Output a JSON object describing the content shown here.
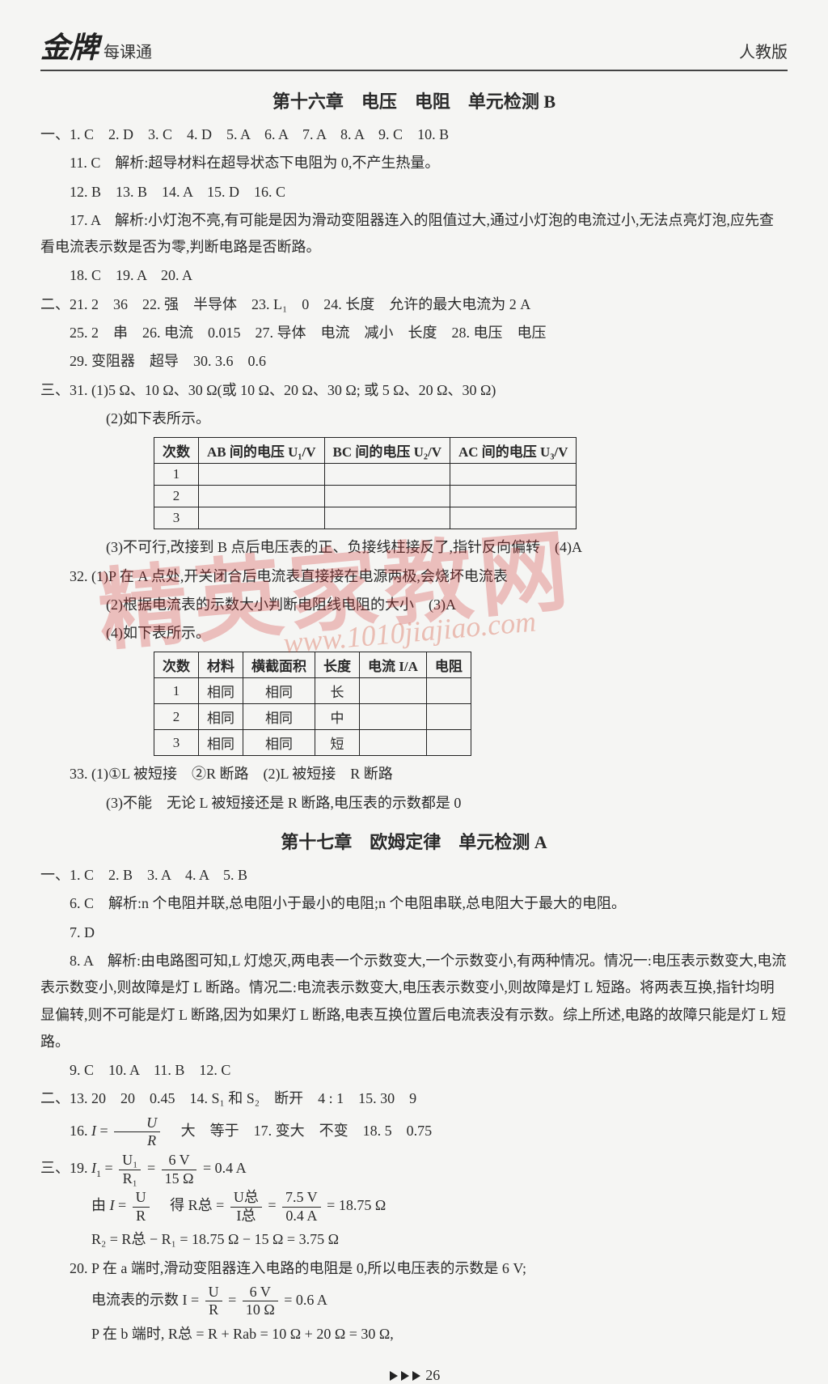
{
  "header": {
    "brand_logo": "金牌",
    "brand_sub": "每课通",
    "version": "人教版"
  },
  "chapter16": {
    "title": "第十六章　电压　电阻　单元检测 B",
    "section1": {
      "label": "一、",
      "answers": "1. C　2. D　3. C　4. D　5. A　6. A　7. A　8. A　9. C　10. B",
      "q11": "11. C　解析:超导材料在超导状态下电阻为 0,不产生热量。",
      "q12to16": "12. B　13. B　14. A　15. D　16. C",
      "q17": "17. A　解析:小灯泡不亮,有可能是因为滑动变阻器连入的阻值过大,通过小灯泡的电流过小,无法点亮灯泡,应先查看电流表示数是否为零,判断电路是否断路。",
      "q18to20": "18. C　19. A　20. A"
    },
    "section2": {
      "label": "二、",
      "q21to24": "21. 2　36　22. 强　半导体　23. L₁　0　24. 长度　允许的最大电流为 2 A",
      "q25to28": "25. 2　串　26. 电流　0.015　27. 导体　电流　减小　长度　28. 电压　电压",
      "q29to30": "29. 变阻器　超导　30. 3.6　0.6"
    },
    "section3": {
      "label": "三、",
      "q31_1": "31. (1)5 Ω、10 Ω、30 Ω(或 10 Ω、20 Ω、30 Ω; 或 5 Ω、20 Ω、30 Ω)",
      "q31_2": "(2)如下表所示。",
      "table1": {
        "headers": [
          "次数",
          "AB 间的电压 U₁/V",
          "BC 间的电压 U₂/V",
          "AC 间的电压 U₃/V"
        ],
        "rows": [
          [
            "1",
            "",
            "",
            ""
          ],
          [
            "2",
            "",
            "",
            ""
          ],
          [
            "3",
            "",
            "",
            ""
          ]
        ]
      },
      "q31_3": "(3)不可行,改接到 B 点后电压表的正、负接线柱接反了,指针反向偏转　(4)A",
      "q32_1": "32. (1)P 在 A 点处,开关闭合后电流表直接接在电源两极,会烧坏电流表",
      "q32_2": "(2)根据电流表的示数大小判断电阻线电阻的大小　(3)A",
      "q32_4": "(4)如下表所示。",
      "table2": {
        "headers": [
          "次数",
          "材料",
          "横截面积",
          "长度",
          "电流 I/A",
          "电阻"
        ],
        "rows": [
          [
            "1",
            "相同",
            "相同",
            "长",
            "",
            ""
          ],
          [
            "2",
            "相同",
            "相同",
            "中",
            "",
            ""
          ],
          [
            "3",
            "相同",
            "相同",
            "短",
            "",
            ""
          ]
        ]
      },
      "q33_1": "33. (1)①L 被短接　②R 断路　(2)L 被短接　R 断路",
      "q33_3": "(3)不能　无论 L 被短接还是 R 断路,电压表的示数都是 0"
    }
  },
  "chapter17": {
    "title": "第十七章　欧姆定律　单元检测 A",
    "section1": {
      "label": "一、",
      "q1to5": "1. C　2. B　3. A　4. A　5. B",
      "q6": "6. C　解析:n 个电阻并联,总电阻小于最小的电阻;n 个电阻串联,总电阻大于最大的电阻。",
      "q7": "7. D",
      "q8": "8. A　解析:由电路图可知,L 灯熄灭,两电表一个示数变大,一个示数变小,有两种情况。情况一:电压表示数变大,电流表示数变小,则故障是灯 L 断路。情况二:电流表示数变大,电压表示数变小,则故障是灯 L 短路。将两表互换,指针均明显偏转,则不可能是灯 L 断路,因为如果灯 L 断路,电表互换位置后电流表没有示数。综上所述,电路的故障只能是灯 L 短路。",
      "q9to12": "9. C　10. A　11. B　12. C"
    },
    "section2": {
      "label": "二、",
      "q13to15": "13. 20　20　0.45　14. S₁ 和 S₂　断开　4 : 1　15. 30　9",
      "q16_pre": "16. ",
      "q16_eq": "I = U/R",
      "q16_post": "　大　等于　17. 变大　不变　18. 5　0.75"
    },
    "section3": {
      "label": "三、",
      "q19_intro": "19. ",
      "q19_eq1_lhs": "I₁ = ",
      "q19_eq1_num": "U₁",
      "q19_eq1_den": "R₁",
      "q19_eq1_eq": " = ",
      "q19_eq1_num2": "6 V",
      "q19_eq1_den2": "15 Ω",
      "q19_eq1_res": " = 0.4 A",
      "q19_l2_pre": "由 ",
      "q19_l2_num": "U",
      "q19_l2_den": "R",
      "q19_l2_mid": "　得 R总 = ",
      "q19_l2_num2": "U总",
      "q19_l2_den2": "I总",
      "q19_l2_eq": " = ",
      "q19_l2_num3": "7.5 V",
      "q19_l2_den3": "0.4 A",
      "q19_l2_res": " = 18.75 Ω",
      "q19_l3": "R₂ = R总 − R₁ = 18.75 Ω − 15 Ω = 3.75 Ω",
      "q20_l1": "20. P 在 a 端时,滑动变阻器连入电路的电阻是 0,所以电压表的示数是 6 V;",
      "q20_l2_pre": "电流表的示数 I = ",
      "q20_l2_num": "U",
      "q20_l2_den": "R",
      "q20_l2_eq": " = ",
      "q20_l2_num2": "6 V",
      "q20_l2_den2": "10 Ω",
      "q20_l2_res": " = 0.6 A",
      "q20_l3": "P 在 b 端时, R总 = R + Rab = 10 Ω + 20 Ω = 30 Ω,"
    }
  },
  "footer": {
    "page": "26"
  },
  "watermark": {
    "main": "精英家教网",
    "sub": "www.1010jiajiao.com"
  }
}
